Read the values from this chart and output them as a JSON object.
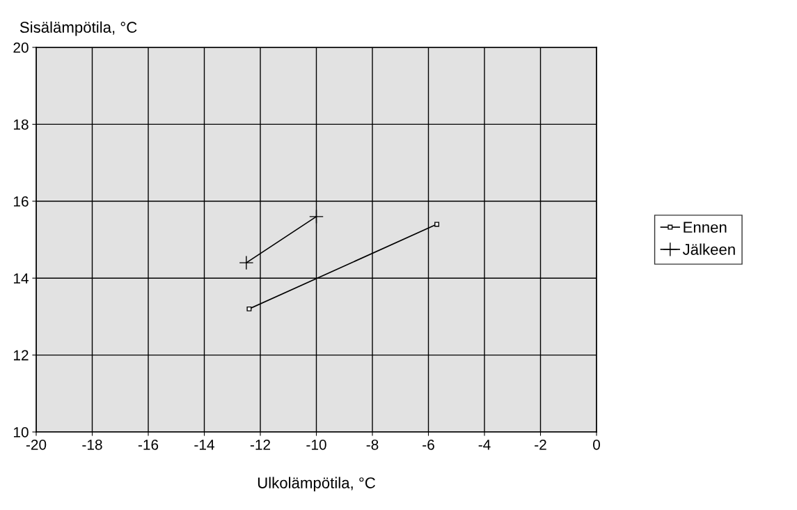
{
  "chart_data": {
    "type": "line",
    "xlabel": "Ulkolämpötila, °C",
    "ylabel": "Sisälämpötila, °C",
    "series": [
      {
        "name": "Ennen",
        "color": "#000000",
        "marker": "square",
        "x": [
          -12.4,
          -5.7
        ],
        "values": [
          13.2,
          15.4
        ]
      },
      {
        "name": "Jälkeen",
        "color": "#000000",
        "marker": "cross",
        "x": [
          -12.5,
          -10.0
        ],
        "values": [
          14.4,
          15.6
        ]
      }
    ],
    "xlim": [
      -20,
      0
    ],
    "xticks": [
      -20,
      -18,
      -16,
      -14,
      -12,
      -10,
      -8,
      -6,
      -4,
      -2,
      0
    ],
    "ylim": [
      10,
      20
    ],
    "yticks": [
      10,
      12,
      14,
      16,
      18,
      20
    ],
    "grid": true,
    "legend": "right",
    "line_style": "solid"
  }
}
